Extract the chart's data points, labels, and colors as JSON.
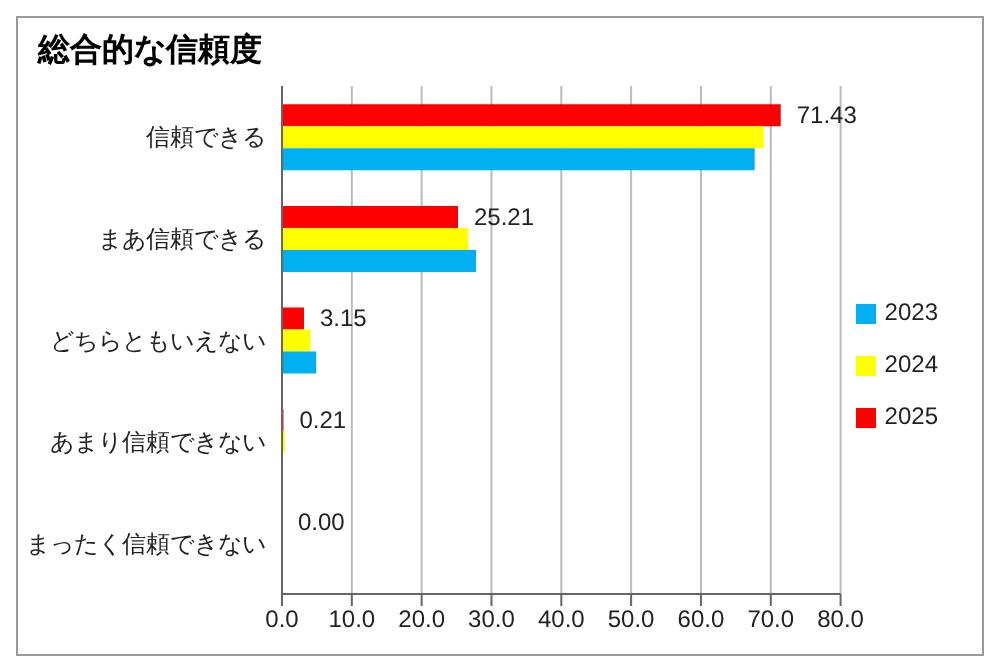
{
  "chart_data": {
    "type": "bar",
    "orientation": "horizontal",
    "title": "総合的な信頼度",
    "categories": [
      "信頼できる",
      "まあ信頼できる",
      "どちらともいえない",
      "あまり信頼できない",
      "まったく信頼できない"
    ],
    "series": [
      {
        "name": "2025",
        "color": "#ff0000",
        "values": [
          71.43,
          25.21,
          3.15,
          0.21,
          0.0
        ],
        "value_labels": [
          "71.43",
          "25.21",
          "3.15",
          "0.21",
          "0.00"
        ]
      },
      {
        "name": "2024",
        "color": "#ffff00",
        "values": [
          69.0,
          26.7,
          4.1,
          0.4,
          0.0
        ]
      },
      {
        "name": "2023",
        "color": "#00b0f0",
        "values": [
          67.7,
          27.8,
          4.9,
          0.0,
          0.0
        ]
      }
    ],
    "xlim": [
      0,
      80
    ],
    "xticks": [
      {
        "value": 0,
        "label": "0.0"
      },
      {
        "value": 10,
        "label": "10.0"
      },
      {
        "value": 20,
        "label": "20.0"
      },
      {
        "value": 30,
        "label": "30.0"
      },
      {
        "value": 40,
        "label": "40.0"
      },
      {
        "value": 50,
        "label": "50.0"
      },
      {
        "value": 60,
        "label": "60.0"
      },
      {
        "value": 70,
        "label": "70.0"
      },
      {
        "value": 80,
        "label": "80.0"
      }
    ],
    "grid": "x",
    "legend": "right"
  }
}
